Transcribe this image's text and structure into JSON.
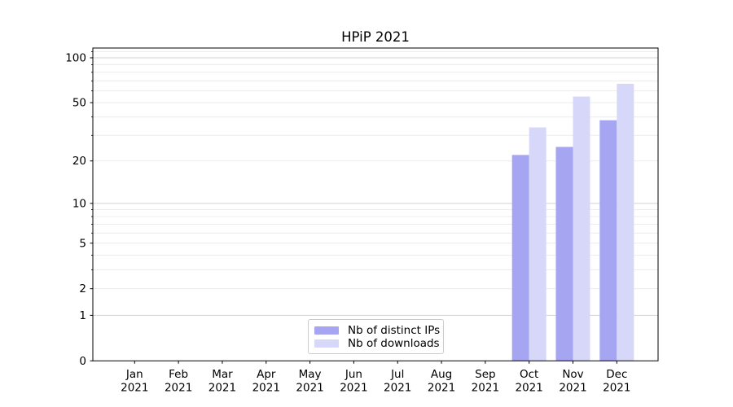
{
  "chart_data": {
    "type": "bar",
    "title": "HPiP 2021",
    "categories": [
      "Jan 2021",
      "Feb 2021",
      "Mar 2021",
      "Apr 2021",
      "May 2021",
      "Jun 2021",
      "Jul 2021",
      "Aug 2021",
      "Sep 2021",
      "Oct 2021",
      "Nov 2021",
      "Dec 2021"
    ],
    "series": [
      {
        "name": "Nb of distinct IPs",
        "color": "#a5a5f2",
        "values": [
          0,
          0,
          0,
          0,
          0,
          0,
          0,
          0,
          0,
          22,
          25,
          38
        ]
      },
      {
        "name": "Nb of downloads",
        "color": "#d7d7f9",
        "values": [
          0,
          0,
          0,
          0,
          0,
          0,
          0,
          0,
          0,
          34,
          55,
          67
        ]
      }
    ],
    "ylabel": "",
    "xlabel": "",
    "yscale": "log1p",
    "ylim": [
      0,
      116
    ],
    "ytick_values": [
      0,
      1,
      2,
      5,
      10,
      20,
      50,
      100
    ],
    "ytick_labels": [
      "0",
      "1",
      "2",
      "5",
      "10",
      "20",
      "50",
      "100"
    ],
    "ytick_major_grid": [
      1,
      10,
      100
    ],
    "ytick_minor_grid": [
      2,
      3,
      4,
      5,
      6,
      7,
      8,
      9,
      20,
      30,
      40,
      50,
      60,
      70,
      80,
      90,
      110
    ],
    "grid": "horizontal",
    "legend_position": "lower center"
  },
  "colors": {
    "background": "#ffffff",
    "axis": "#000000",
    "major_grid": "#d2d2d2",
    "minor_grid": "#ececec",
    "legend_border": "#cccccc",
    "text": "#000000"
  }
}
